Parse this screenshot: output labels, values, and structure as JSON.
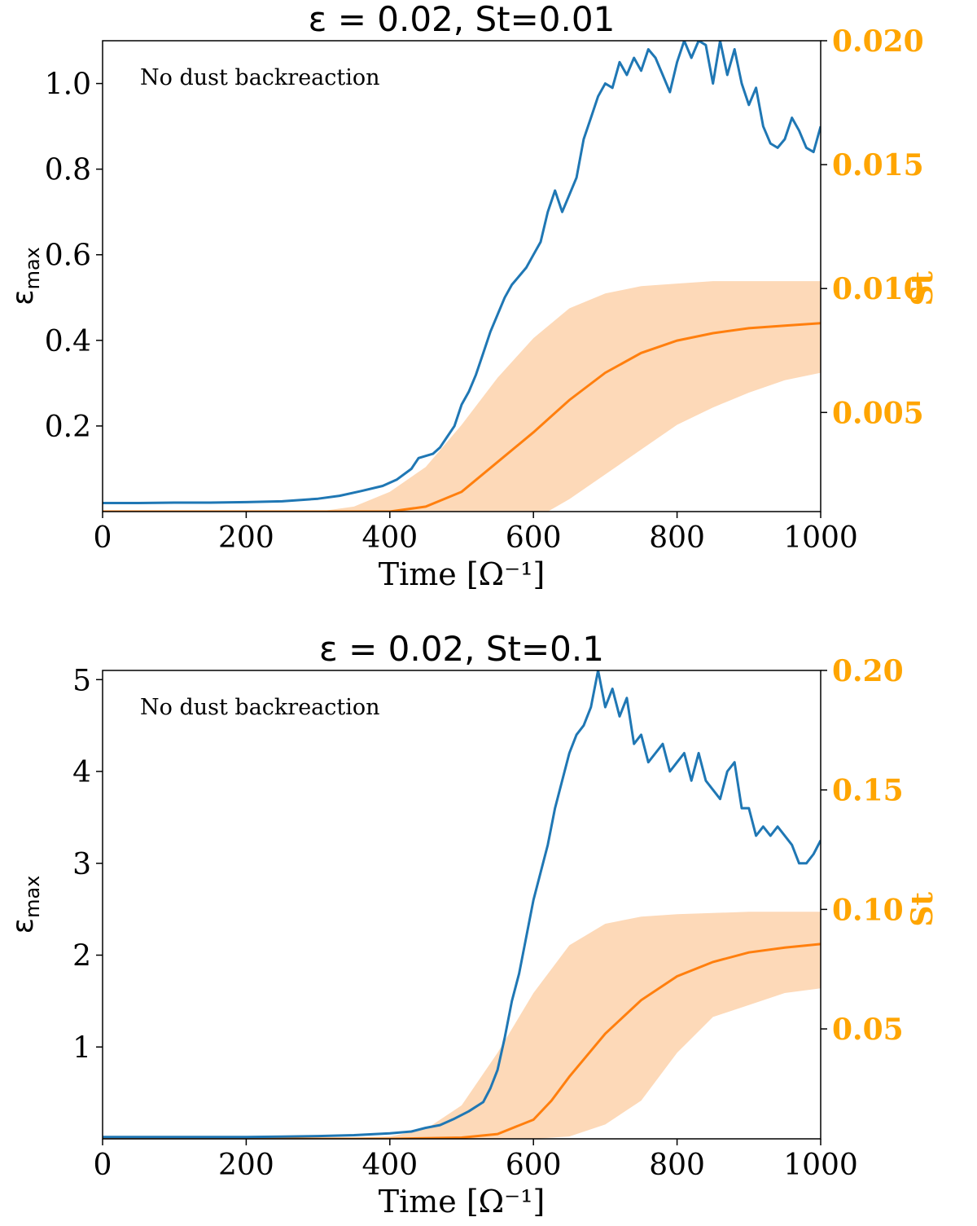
{
  "colors": {
    "eps_line": "#1f77b4",
    "st_line": "#ff7f0e",
    "st_band": "#fdd9b8",
    "right_axis": "#FFA500"
  },
  "chart_data": [
    {
      "type": "line",
      "title": "ε = 0.02, St=0.01",
      "annotation": "No dust backreaction",
      "xlabel": "Time [Ω⁻¹]",
      "ylabel": "εmax",
      "ylabel_main": "ε",
      "ylabel_sub": "max",
      "ylabel_right": "St",
      "xlim": [
        0,
        1000
      ],
      "ylim": [
        0.0,
        1.1
      ],
      "ylim_right": [
        0.001,
        0.02
      ],
      "x_ticks": [
        0,
        200,
        400,
        600,
        800,
        1000
      ],
      "x_tick_labels": [
        "0",
        "200",
        "400",
        "600",
        "800",
        "1000"
      ],
      "y_ticks": [
        0.2,
        0.4,
        0.6,
        0.8,
        1.0
      ],
      "y_tick_labels": [
        "0.2",
        "0.4",
        "0.6",
        "0.8",
        "1.0"
      ],
      "y_ticks_right": [
        0.005,
        0.01,
        0.015,
        0.02
      ],
      "y_tick_labels_right": [
        "0.005",
        "0.010",
        "0.015",
        "0.020"
      ],
      "series": [
        {
          "name": "epsilon_max",
          "axis": "left",
          "x": [
            0,
            50,
            100,
            150,
            200,
            250,
            300,
            330,
            360,
            390,
            410,
            430,
            440,
            450,
            460,
            470,
            480,
            490,
            500,
            510,
            520,
            530,
            540,
            550,
            560,
            570,
            580,
            590,
            600,
            610,
            620,
            630,
            640,
            650,
            660,
            670,
            680,
            690,
            700,
            710,
            720,
            730,
            740,
            750,
            760,
            770,
            780,
            790,
            800,
            810,
            820,
            830,
            840,
            850,
            860,
            870,
            880,
            890,
            900,
            910,
            920,
            930,
            940,
            950,
            960,
            970,
            980,
            990,
            1000
          ],
          "y": [
            0.02,
            0.02,
            0.021,
            0.021,
            0.022,
            0.024,
            0.03,
            0.037,
            0.048,
            0.06,
            0.075,
            0.1,
            0.125,
            0.13,
            0.135,
            0.15,
            0.175,
            0.2,
            0.25,
            0.28,
            0.32,
            0.37,
            0.42,
            0.46,
            0.5,
            0.53,
            0.55,
            0.57,
            0.6,
            0.63,
            0.7,
            0.75,
            0.7,
            0.74,
            0.78,
            0.87,
            0.92,
            0.97,
            1.0,
            0.99,
            1.05,
            1.02,
            1.06,
            1.03,
            1.08,
            1.06,
            1.02,
            0.98,
            1.05,
            1.1,
            1.06,
            1.1,
            1.09,
            1.0,
            1.1,
            1.02,
            1.08,
            1.0,
            0.95,
            0.99,
            0.9,
            0.86,
            0.85,
            0.87,
            0.92,
            0.89,
            0.85,
            0.84,
            0.9
          ]
        },
        {
          "name": "St_mean",
          "axis": "right",
          "x": [
            0,
            100,
            200,
            300,
            400,
            450,
            500,
            550,
            600,
            650,
            700,
            750,
            800,
            850,
            900,
            950,
            1000
          ],
          "y": [
            0.001,
            0.001,
            0.001,
            0.001,
            0.001,
            0.0012,
            0.0018,
            0.003,
            0.0042,
            0.0055,
            0.0066,
            0.0074,
            0.0079,
            0.0082,
            0.0084,
            0.0085,
            0.0086
          ]
        },
        {
          "name": "St_band_upper",
          "axis": "right",
          "x": [
            0,
            100,
            200,
            300,
            350,
            400,
            450,
            500,
            550,
            600,
            650,
            700,
            750,
            800,
            850,
            900,
            1000
          ],
          "y": [
            0.001,
            0.001,
            0.001,
            0.001,
            0.0012,
            0.0018,
            0.0028,
            0.0045,
            0.0064,
            0.008,
            0.0092,
            0.0098,
            0.0101,
            0.0102,
            0.0103,
            0.0103,
            0.0103
          ]
        },
        {
          "name": "St_band_lower",
          "axis": "right",
          "x": [
            0,
            100,
            200,
            300,
            400,
            500,
            600,
            620,
            650,
            700,
            750,
            800,
            850,
            900,
            950,
            1000
          ],
          "y": [
            0.001,
            0.001,
            0.001,
            0.001,
            0.001,
            0.001,
            0.001,
            0.001,
            0.0015,
            0.0025,
            0.0035,
            0.0045,
            0.0052,
            0.0058,
            0.0063,
            0.0066
          ]
        }
      ]
    },
    {
      "type": "line",
      "title": "ε = 0.02, St=0.1",
      "annotation": "No dust backreaction",
      "xlabel": "Time [Ω⁻¹]",
      "ylabel": "εmax",
      "ylabel_main": "ε",
      "ylabel_sub": "max",
      "ylabel_right": "St",
      "xlim": [
        0,
        1000
      ],
      "ylim": [
        0.0,
        5.1
      ],
      "ylim_right": [
        0.004,
        0.2
      ],
      "x_ticks": [
        0,
        200,
        400,
        600,
        800,
        1000
      ],
      "x_tick_labels": [
        "0",
        "200",
        "400",
        "600",
        "800",
        "1000"
      ],
      "y_ticks": [
        1,
        2,
        3,
        4,
        5
      ],
      "y_tick_labels": [
        "1",
        "2",
        "3",
        "4",
        "5"
      ],
      "y_ticks_right": [
        0.05,
        0.1,
        0.15,
        0.2
      ],
      "y_tick_labels_right": [
        "0.05",
        "0.10",
        "0.15",
        "0.20"
      ],
      "series": [
        {
          "name": "epsilon_max",
          "axis": "left",
          "x": [
            0,
            50,
            100,
            150,
            200,
            250,
            300,
            350,
            400,
            430,
            450,
            470,
            490,
            510,
            530,
            540,
            550,
            560,
            570,
            580,
            590,
            600,
            610,
            620,
            630,
            640,
            650,
            660,
            670,
            680,
            690,
            700,
            710,
            720,
            730,
            740,
            750,
            760,
            770,
            780,
            790,
            800,
            810,
            820,
            830,
            840,
            850,
            860,
            870,
            880,
            890,
            900,
            910,
            920,
            930,
            940,
            950,
            960,
            970,
            980,
            990,
            1000
          ],
          "y": [
            0.02,
            0.02,
            0.02,
            0.02,
            0.02,
            0.025,
            0.03,
            0.04,
            0.06,
            0.08,
            0.12,
            0.15,
            0.22,
            0.3,
            0.4,
            0.55,
            0.75,
            1.1,
            1.5,
            1.8,
            2.2,
            2.6,
            2.9,
            3.2,
            3.6,
            3.9,
            4.2,
            4.4,
            4.5,
            4.7,
            5.1,
            4.7,
            4.9,
            4.6,
            4.8,
            4.3,
            4.4,
            4.1,
            4.2,
            4.3,
            4.0,
            4.1,
            4.2,
            3.9,
            4.2,
            3.9,
            3.8,
            3.7,
            4.0,
            4.1,
            3.6,
            3.6,
            3.3,
            3.4,
            3.3,
            3.4,
            3.3,
            3.2,
            3.0,
            3.0,
            3.1,
            3.25
          ]
        },
        {
          "name": "St_mean",
          "axis": "right",
          "x": [
            0,
            100,
            200,
            300,
            400,
            500,
            550,
            600,
            625,
            650,
            700,
            750,
            800,
            850,
            900,
            950,
            1000
          ],
          "y": [
            0.004,
            0.004,
            0.004,
            0.004,
            0.004,
            0.0045,
            0.006,
            0.012,
            0.02,
            0.03,
            0.048,
            0.062,
            0.072,
            0.078,
            0.082,
            0.084,
            0.0855
          ]
        },
        {
          "name": "St_band_upper",
          "axis": "right",
          "x": [
            0,
            100,
            200,
            300,
            400,
            450,
            500,
            550,
            600,
            650,
            700,
            750,
            800,
            900,
            1000
          ],
          "y": [
            0.004,
            0.004,
            0.004,
            0.004,
            0.005,
            0.008,
            0.018,
            0.04,
            0.065,
            0.085,
            0.094,
            0.097,
            0.098,
            0.099,
            0.099
          ]
        },
        {
          "name": "St_band_lower",
          "axis": "right",
          "x": [
            0,
            100,
            200,
            300,
            400,
            500,
            600,
            650,
            700,
            750,
            800,
            850,
            900,
            950,
            1000
          ],
          "y": [
            0.004,
            0.004,
            0.004,
            0.004,
            0.004,
            0.004,
            0.004,
            0.005,
            0.01,
            0.02,
            0.04,
            0.055,
            0.06,
            0.065,
            0.067
          ]
        }
      ]
    }
  ]
}
